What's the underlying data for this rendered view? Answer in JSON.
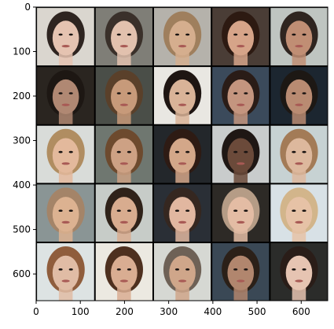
{
  "chart_data": {
    "type": "heatmap",
    "title": "",
    "xlabel": "",
    "ylabel": "",
    "xlim": [
      0,
      660
    ],
    "ylim": [
      660,
      0
    ],
    "y_inverted": true,
    "grid": false,
    "x_ticks": [
      0,
      100,
      200,
      300,
      400,
      500,
      600
    ],
    "y_ticks": [
      0,
      100,
      200,
      300,
      400,
      500,
      600
    ],
    "image_grid": {
      "rows": 5,
      "cols": 5,
      "cell_size": 130,
      "separator": 2
    },
    "tiles": [
      {
        "row": 0,
        "col": 0,
        "bg": "#dad6cf",
        "skin": "#e5c3b1",
        "hair": "#2e2420"
      },
      {
        "row": 0,
        "col": 1,
        "bg": "#7f7e77",
        "skin": "#e2c1ae",
        "hair": "#3a302a"
      },
      {
        "row": 0,
        "col": 2,
        "bg": "#b5b2ab",
        "skin": "#d5ae8e",
        "hair": "#9f7f5d"
      },
      {
        "row": 0,
        "col": 3,
        "bg": "#4a3d36",
        "skin": "#d6a489",
        "hair": "#2d1a12"
      },
      {
        "row": 0,
        "col": 4,
        "bg": "#bfc5c1",
        "skin": "#c08e74",
        "hair": "#2f2520"
      },
      {
        "row": 1,
        "col": 0,
        "bg": "#2a2520",
        "skin": "#b08873",
        "hair": "#1d1713"
      },
      {
        "row": 1,
        "col": 1,
        "bg": "#4a4e48",
        "skin": "#c79a7a",
        "hair": "#5a402a"
      },
      {
        "row": 1,
        "col": 2,
        "bg": "#e9e7e2",
        "skin": "#d9b398",
        "hair": "#1e1512"
      },
      {
        "row": 1,
        "col": 3,
        "bg": "#3b4a5b",
        "skin": "#c4957f",
        "hair": "#2a1c17"
      },
      {
        "row": 1,
        "col": 4,
        "bg": "#1c2630",
        "skin": "#b98b72",
        "hair": "#1d1814"
      },
      {
        "row": 2,
        "col": 0,
        "bg": "#d9dcd9",
        "skin": "#e3b99c",
        "hair": "#b08d61"
      },
      {
        "row": 2,
        "col": 1,
        "bg": "#6f7770",
        "skin": "#cda184",
        "hair": "#6d4a2e"
      },
      {
        "row": 2,
        "col": 2,
        "bg": "#23272b",
        "skin": "#d3a789",
        "hair": "#2e1b14"
      },
      {
        "row": 2,
        "col": 3,
        "bg": "#c9cccc",
        "skin": "#6b4a3a",
        "hair": "#1f1714"
      },
      {
        "row": 2,
        "col": 4,
        "bg": "#c7d2d3",
        "skin": "#ddb89d",
        "hair": "#a37b57"
      },
      {
        "row": 3,
        "col": 0,
        "bg": "#8a9595",
        "skin": "#dcb291",
        "hair": "#a48468"
      },
      {
        "row": 3,
        "col": 1,
        "bg": "#c7ccc8",
        "skin": "#d8ac8f",
        "hair": "#2f2219"
      },
      {
        "row": 3,
        "col": 2,
        "bg": "#2a2f36",
        "skin": "#e1b7a0",
        "hair": "#352720"
      },
      {
        "row": 3,
        "col": 3,
        "bg": "#2d2a26",
        "skin": "#e3bca4",
        "hair": "#b59c86"
      },
      {
        "row": 3,
        "col": 4,
        "bg": "#d8e1e6",
        "skin": "#e6c2a6",
        "hair": "#d2b58b"
      },
      {
        "row": 4,
        "col": 0,
        "bg": "#dde3e3",
        "skin": "#e0bca5",
        "hair": "#8f5d3c"
      },
      {
        "row": 4,
        "col": 1,
        "bg": "#ece9e1",
        "skin": "#d9ad92",
        "hair": "#4e301f"
      },
      {
        "row": 4,
        "col": 2,
        "bg": "#d6d8d3",
        "skin": "#cfa68a",
        "hair": "#6e6156"
      },
      {
        "row": 4,
        "col": 3,
        "bg": "#3a4855",
        "skin": "#b1866e",
        "hair": "#2b2018"
      },
      {
        "row": 4,
        "col": 4,
        "bg": "#2b2c2a",
        "skin": "#e6c4b2",
        "hair": "#2a1d18"
      }
    ],
    "colors": {
      "separator": "#0c0c0c",
      "axis": "#000000",
      "eye": "#1a1412",
      "mouth": "#a85a55"
    }
  }
}
